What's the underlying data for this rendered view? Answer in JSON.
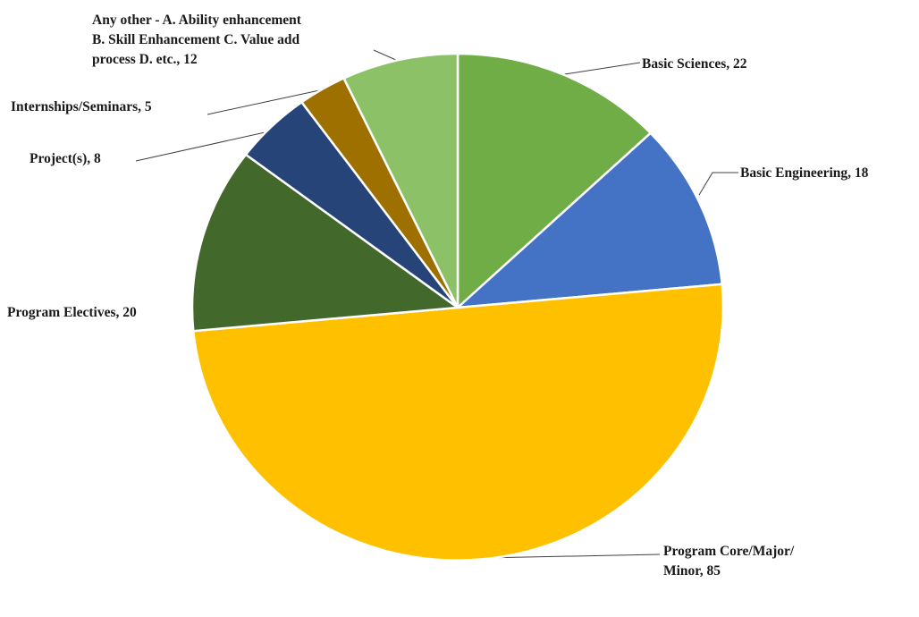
{
  "chart_data": {
    "type": "pie",
    "title": "",
    "slices": [
      {
        "label_lines": [
          "Basic Sciences, 22"
        ],
        "value": 22,
        "color": "#70AD47"
      },
      {
        "label_lines": [
          "Basic Engineering,  18"
        ],
        "value": 18,
        "color": "#4472C4"
      },
      {
        "label_lines": [
          "Program  Core/Major/",
          "Minor, 85"
        ],
        "value": 85,
        "color": "#FFC000"
      },
      {
        "label_lines": [
          "Program  Electives, 20"
        ],
        "value": 20,
        "color": "#43682B"
      },
      {
        "label_lines": [
          "Project(s),  8"
        ],
        "value": 8,
        "color": "#264478"
      },
      {
        "label_lines": [
          "Internships/Seminars,  5"
        ],
        "value": 5,
        "color": "#9E7000"
      },
      {
        "label_lines": [
          "Any other  - A. Ability  enhancement",
          "B. Skill Enhancement  C. Value add",
          "process D. etc., 12"
        ],
        "value": 12,
        "color": "#8CC168"
      }
    ]
  }
}
